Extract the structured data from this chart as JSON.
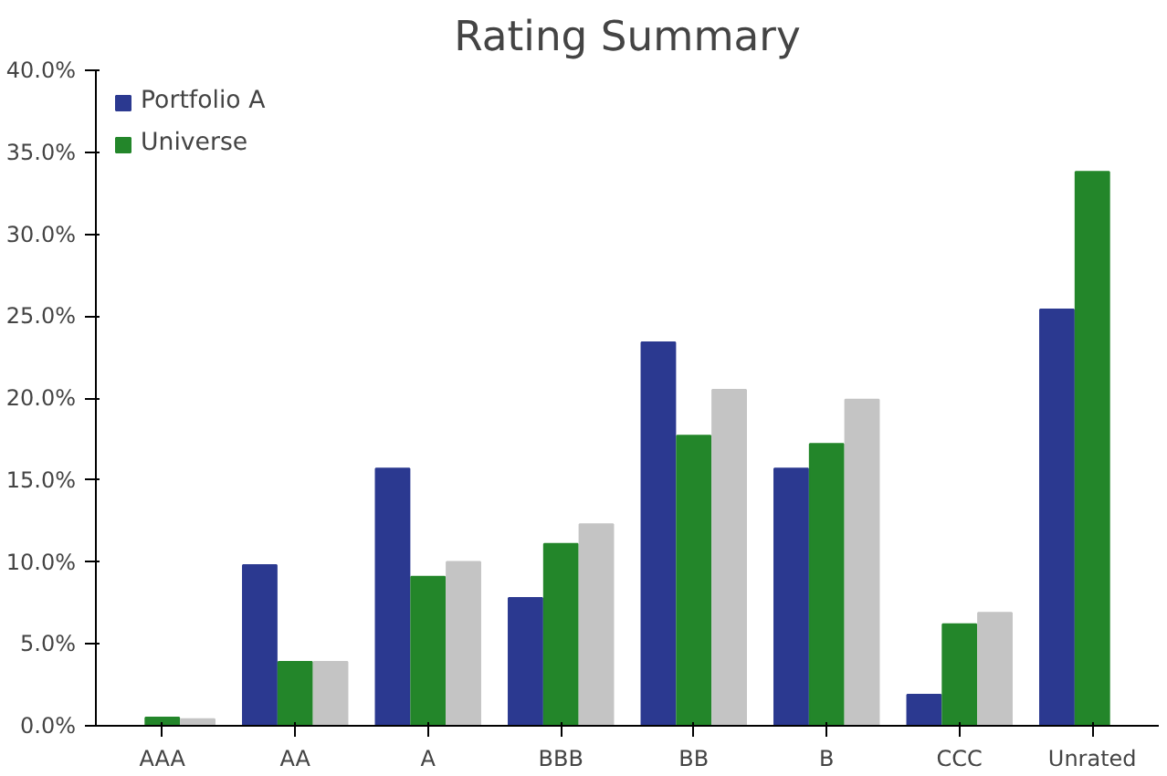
{
  "chart_data": {
    "type": "bar",
    "title": "Rating Summary",
    "categories": [
      "AAA",
      "AA",
      "A",
      "BBB",
      "BB",
      "B",
      "CCC",
      "Unrated"
    ],
    "series": [
      {
        "name": "Portfolio A",
        "color": "#2b3990",
        "values": [
          0,
          9.8,
          15.7,
          7.8,
          23.4,
          15.7,
          1.9,
          25.4
        ]
      },
      {
        "name": "Universe",
        "color": "#23862a",
        "values": [
          0.5,
          3.9,
          9.1,
          11.1,
          17.7,
          17.2,
          6.2,
          33.8
        ]
      },
      {
        "color": "#c4c4c4",
        "values": [
          0.4,
          3.9,
          10.0,
          12.3,
          20.5,
          19.9,
          6.9,
          null
        ]
      }
    ],
    "ylim": [
      0,
      40
    ],
    "yticks": [
      {
        "value": 0,
        "label": "0.0%"
      },
      {
        "value": 5,
        "label": "5.0%"
      },
      {
        "value": 10,
        "label": "10.0%"
      },
      {
        "value": 15,
        "label": "15.0%"
      },
      {
        "value": 20,
        "label": "20.0%"
      },
      {
        "value": 25,
        "label": "25.0%"
      },
      {
        "value": 30,
        "label": "30.0%"
      },
      {
        "value": 35,
        "label": "35.0%"
      },
      {
        "value": 40,
        "label": "40.0%"
      }
    ],
    "grid": false,
    "legend": "top left"
  }
}
